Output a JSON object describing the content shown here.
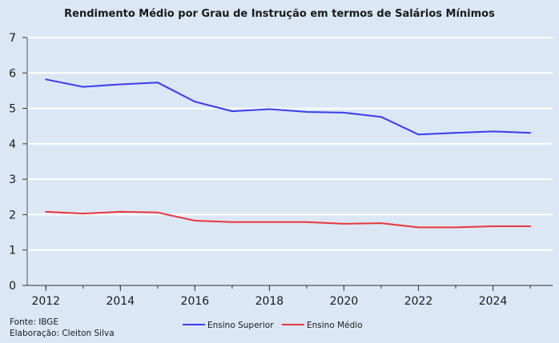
{
  "chart_data": {
    "type": "line",
    "title": "Rendimento Médio por Grau de Instrução em termos de Salários Mínimos",
    "x": [
      2012,
      2013,
      2014,
      2015,
      2016,
      2017,
      2018,
      2019,
      2020,
      2021,
      2022,
      2023,
      2024,
      2025
    ],
    "x_tick_labels": [
      "2012",
      "2014",
      "2016",
      "2018",
      "2020",
      "2022",
      "2024"
    ],
    "x_ticks": [
      2012,
      2014,
      2016,
      2018,
      2020,
      2022,
      2024
    ],
    "y_tick_labels": [
      "0",
      "1",
      "2",
      "3",
      "4",
      "5",
      "6",
      "7"
    ],
    "y_ticks": [
      0,
      1,
      2,
      3,
      4,
      5,
      6,
      7
    ],
    "ylim": [
      0,
      7
    ],
    "xlim": [
      2011.5,
      2025.6
    ],
    "grid": true,
    "legend_position": "bottom-center",
    "series": [
      {
        "name": "Ensino Superior",
        "color": "#3b3bf0",
        "values": [
          5.82,
          5.61,
          5.68,
          5.73,
          5.19,
          4.92,
          4.98,
          4.9,
          4.88,
          4.76,
          4.26,
          4.31,
          4.35,
          4.31
        ]
      },
      {
        "name": "Ensino Médio",
        "color": "#e8363a",
        "values": [
          2.08,
          2.03,
          2.08,
          2.06,
          1.83,
          1.79,
          1.79,
          1.79,
          1.74,
          1.76,
          1.64,
          1.64,
          1.67,
          1.67
        ]
      }
    ]
  },
  "footer": {
    "source": "Fonte: IBGE",
    "author": "Elaboração: Cleiton Silva"
  }
}
